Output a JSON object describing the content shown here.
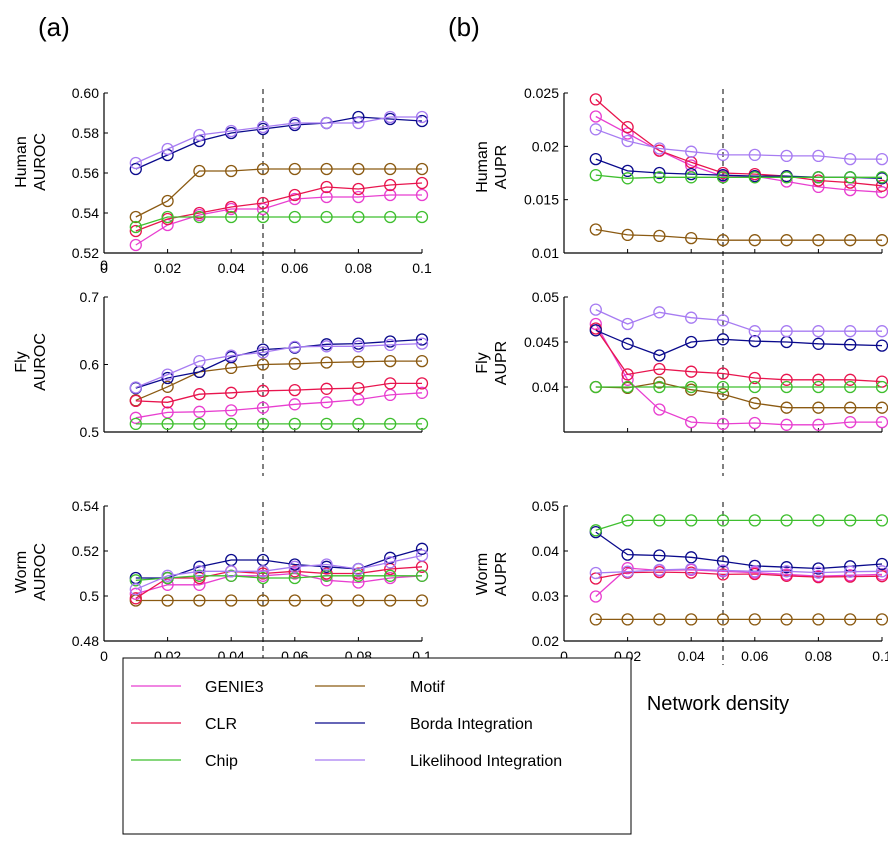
{
  "panels": {
    "a": "(a)",
    "b": "(b)"
  },
  "legend": [
    {
      "name": "GENIE3",
      "color": "#e83fd0"
    },
    {
      "name": "Motif",
      "color": "#8b5a12"
    },
    {
      "name": "CLR",
      "color": "#e8154e"
    },
    {
      "name": "Borda Integration",
      "color": "#0a0a8c"
    },
    {
      "name": "Chip",
      "color": "#3fbf2f"
    },
    {
      "name": "Likelihood Integration",
      "color": "#a77cf2"
    }
  ],
  "chart_data": [
    {
      "type": "line",
      "panel": "a",
      "ylabel": [
        "Human",
        "AUROC"
      ],
      "xlabel": "",
      "xlim": [
        0,
        0.1
      ],
      "ylim": [
        0.52,
        0.6
      ],
      "xticks": [
        "0",
        "0.02",
        "0.04",
        "0.06",
        "0.08",
        "0.1"
      ],
      "yticks": [
        "0.52",
        "0.54",
        "0.56",
        "0.58",
        "0.60"
      ],
      "extra_ticks": [
        "0"
      ],
      "x": [
        0.01,
        0.02,
        0.03,
        0.04,
        0.05,
        0.06,
        0.07,
        0.08,
        0.09,
        0.1
      ],
      "vline": 0.05,
      "series": [
        {
          "name": "GENIE3",
          "values": [
            0.524,
            0.534,
            0.539,
            0.542,
            0.542,
            0.547,
            0.548,
            0.548,
            0.549,
            0.549
          ]
        },
        {
          "name": "Motif",
          "values": [
            0.538,
            0.546,
            0.561,
            0.561,
            0.562,
            0.562,
            0.562,
            0.562,
            0.562,
            0.562
          ]
        },
        {
          "name": "CLR",
          "values": [
            0.531,
            0.537,
            0.54,
            0.543,
            0.545,
            0.549,
            0.553,
            0.552,
            0.554,
            0.555
          ]
        },
        {
          "name": "Borda Integration",
          "values": [
            0.562,
            0.569,
            0.576,
            0.58,
            0.582,
            0.584,
            0.585,
            0.588,
            0.587,
            0.586
          ]
        },
        {
          "name": "Chip",
          "values": [
            0.533,
            0.538,
            0.538,
            0.538,
            0.538,
            0.538,
            0.538,
            0.538,
            0.538,
            0.538
          ]
        },
        {
          "name": "Likelihood Integration",
          "values": [
            0.565,
            0.572,
            0.579,
            0.581,
            0.583,
            0.585,
            0.585,
            0.585,
            0.588,
            0.588
          ]
        }
      ]
    },
    {
      "type": "line",
      "panel": "a",
      "ylabel": [
        "Fly",
        "AUROC"
      ],
      "xlabel": "",
      "xlim": [
        0,
        0.1
      ],
      "ylim": [
        0.5,
        0.7
      ],
      "xticks": [],
      "yticks": [
        "0.5",
        "0.6",
        "0.7"
      ],
      "x": [
        0.01,
        0.02,
        0.03,
        0.04,
        0.05,
        0.06,
        0.07,
        0.08,
        0.09,
        0.1
      ],
      "vline": 0.05,
      "series": [
        {
          "name": "GENIE3",
          "values": [
            0.521,
            0.529,
            0.53,
            0.532,
            0.536,
            0.541,
            0.544,
            0.548,
            0.555,
            0.558
          ]
        },
        {
          "name": "Motif",
          "values": [
            0.547,
            0.567,
            0.589,
            0.595,
            0.6,
            0.601,
            0.603,
            0.604,
            0.605,
            0.605
          ]
        },
        {
          "name": "CLR",
          "values": [
            0.546,
            0.544,
            0.556,
            0.558,
            0.561,
            0.562,
            0.564,
            0.565,
            0.572,
            0.572
          ]
        },
        {
          "name": "Borda Integration",
          "values": [
            0.565,
            0.58,
            0.589,
            0.611,
            0.622,
            0.625,
            0.63,
            0.631,
            0.634,
            0.637
          ]
        },
        {
          "name": "Chip",
          "values": [
            0.512,
            0.512,
            0.512,
            0.512,
            0.512,
            0.512,
            0.512,
            0.512,
            0.512,
            0.512
          ]
        },
        {
          "name": "Likelihood Integration",
          "values": [
            0.566,
            0.585,
            0.605,
            0.613,
            0.618,
            0.626,
            0.627,
            0.627,
            0.629,
            0.631
          ]
        }
      ]
    },
    {
      "type": "line",
      "panel": "a",
      "ylabel": [
        "Worm",
        "AUROC"
      ],
      "xlabel": "Network density",
      "xlim": [
        0,
        0.1
      ],
      "ylim": [
        0.48,
        0.54
      ],
      "xticks": [
        "0",
        "0.02",
        "0.04",
        "0.06",
        "0.08",
        "0.1"
      ],
      "yticks": [
        "0.48",
        "0.5",
        "0.52",
        "0.54"
      ],
      "x": [
        0.01,
        0.02,
        0.03,
        0.04,
        0.05,
        0.06,
        0.07,
        0.08,
        0.09,
        0.1
      ],
      "vline": 0.05,
      "series": [
        {
          "name": "GENIE3",
          "values": [
            0.501,
            0.505,
            0.505,
            0.509,
            0.509,
            0.51,
            0.507,
            0.506,
            0.508,
            0.509
          ]
        },
        {
          "name": "Motif",
          "values": [
            0.498,
            0.498,
            0.498,
            0.498,
            0.498,
            0.498,
            0.498,
            0.498,
            0.498,
            0.498
          ]
        },
        {
          "name": "CLR",
          "values": [
            0.499,
            0.508,
            0.508,
            0.511,
            0.51,
            0.511,
            0.51,
            0.51,
            0.512,
            0.513
          ]
        },
        {
          "name": "Borda Integration",
          "values": [
            0.508,
            0.508,
            0.513,
            0.516,
            0.516,
            0.514,
            0.513,
            0.512,
            0.517,
            0.521
          ]
        },
        {
          "name": "Chip",
          "values": [
            0.507,
            0.508,
            0.509,
            0.509,
            0.508,
            0.508,
            0.509,
            0.509,
            0.509,
            0.509
          ]
        },
        {
          "name": "Likelihood Integration",
          "values": [
            0.503,
            0.509,
            0.511,
            0.511,
            0.511,
            0.513,
            0.514,
            0.512,
            0.515,
            0.518
          ]
        }
      ]
    },
    {
      "type": "line",
      "panel": "b",
      "ylabel": [
        "Human",
        "AUPR"
      ],
      "xlabel": "",
      "xlim": [
        0,
        0.1
      ],
      "ylim": [
        0.01,
        0.025
      ],
      "xticks": [],
      "yticks": [
        "0.01",
        "0.015",
        "0.02",
        "0.025"
      ],
      "x": [
        0.01,
        0.02,
        0.03,
        0.04,
        0.05,
        0.06,
        0.07,
        0.08,
        0.09,
        0.1
      ],
      "vline": 0.05,
      "series": [
        {
          "name": "GENIE3",
          "values": [
            0.0228,
            0.0212,
            0.0196,
            0.0182,
            0.0172,
            0.0172,
            0.0167,
            0.0162,
            0.0159,
            0.0157
          ]
        },
        {
          "name": "Motif",
          "values": [
            0.0122,
            0.0117,
            0.0116,
            0.0114,
            0.0112,
            0.0112,
            0.0112,
            0.0112,
            0.0112,
            0.0112
          ]
        },
        {
          "name": "CLR",
          "values": [
            0.0244,
            0.0218,
            0.0196,
            0.0185,
            0.0175,
            0.0174,
            0.0172,
            0.0168,
            0.0166,
            0.0163
          ]
        },
        {
          "name": "Borda Integration",
          "values": [
            0.0188,
            0.0177,
            0.0175,
            0.0174,
            0.0173,
            0.0172,
            0.0172,
            0.0171,
            0.0171,
            0.017
          ]
        },
        {
          "name": "Chip",
          "values": [
            0.0173,
            0.017,
            0.0171,
            0.0171,
            0.0171,
            0.0171,
            0.0171,
            0.0171,
            0.0171,
            0.0171
          ]
        },
        {
          "name": "Likelihood Integration",
          "values": [
            0.0216,
            0.0205,
            0.0198,
            0.0195,
            0.0192,
            0.0192,
            0.0191,
            0.0191,
            0.0188,
            0.0188
          ]
        }
      ]
    },
    {
      "type": "line",
      "panel": "b",
      "ylabel": [
        "Fly",
        "AUPR"
      ],
      "xlabel": "",
      "xlim": [
        0,
        0.1
      ],
      "ylim": [
        0.035,
        0.05
      ],
      "xticks": [],
      "yticks": [
        "0.04",
        "0.045",
        "0.05"
      ],
      "x": [
        0.01,
        0.02,
        0.03,
        0.04,
        0.05,
        0.06,
        0.07,
        0.08,
        0.09,
        0.1
      ],
      "vline": 0.05,
      "series": [
        {
          "name": "GENIE3",
          "values": [
            0.047,
            0.0408,
            0.0375,
            0.0361,
            0.0359,
            0.036,
            0.0358,
            0.0358,
            0.0361,
            0.0361
          ]
        },
        {
          "name": "Motif",
          "values": [
            0.04,
            0.0399,
            0.0405,
            0.0397,
            0.0392,
            0.0382,
            0.0377,
            0.0377,
            0.0377,
            0.0377
          ]
        },
        {
          "name": "CLR",
          "values": [
            0.0465,
            0.0414,
            0.042,
            0.0417,
            0.0415,
            0.041,
            0.0408,
            0.0408,
            0.0408,
            0.0406
          ]
        },
        {
          "name": "Borda Integration",
          "values": [
            0.0463,
            0.0448,
            0.0435,
            0.045,
            0.0453,
            0.0451,
            0.045,
            0.0448,
            0.0447,
            0.0446
          ]
        },
        {
          "name": "Chip",
          "values": [
            0.04,
            0.04,
            0.04,
            0.04,
            0.04,
            0.04,
            0.04,
            0.04,
            0.04,
            0.04
          ]
        },
        {
          "name": "Likelihood Integration",
          "values": [
            0.0486,
            0.047,
            0.0483,
            0.0477,
            0.0474,
            0.0462,
            0.0462,
            0.0462,
            0.0462,
            0.0462
          ]
        }
      ]
    },
    {
      "type": "line",
      "panel": "b",
      "ylabel": [
        "Worm",
        "AUPR"
      ],
      "xlabel": "Network density",
      "xlim": [
        0,
        0.1
      ],
      "ylim": [
        0.02,
        0.05
      ],
      "xticks": [
        "0",
        "0.02",
        "0.04",
        "0.06",
        "0.08",
        "0.1"
      ],
      "yticks": [
        "0.02",
        "0.03",
        "0.04",
        "0.05"
      ],
      "x": [
        0.01,
        0.02,
        0.03,
        0.04,
        0.05,
        0.06,
        0.07,
        0.08,
        0.09,
        0.1
      ],
      "vline": 0.05,
      "series": [
        {
          "name": "GENIE3",
          "values": [
            0.0299,
            0.0362,
            0.0357,
            0.0358,
            0.0355,
            0.0352,
            0.0348,
            0.0344,
            0.0346,
            0.0348
          ]
        },
        {
          "name": "Motif",
          "values": [
            0.0248,
            0.0248,
            0.0248,
            0.0248,
            0.0248,
            0.0248,
            0.0248,
            0.0248,
            0.0248,
            0.0248
          ]
        },
        {
          "name": "CLR",
          "values": [
            0.0339,
            0.0352,
            0.0353,
            0.0352,
            0.0348,
            0.0349,
            0.0345,
            0.0342,
            0.0343,
            0.0344
          ]
        },
        {
          "name": "Borda Integration",
          "values": [
            0.0442,
            0.0392,
            0.039,
            0.0386,
            0.0377,
            0.0367,
            0.0364,
            0.0361,
            0.0366,
            0.0371
          ]
        },
        {
          "name": "Chip",
          "values": [
            0.0446,
            0.0468,
            0.0468,
            0.0468,
            0.0468,
            0.0468,
            0.0468,
            0.0468,
            0.0468,
            0.0468
          ]
        },
        {
          "name": "Likelihood Integration",
          "values": [
            0.0351,
            0.0354,
            0.0358,
            0.036,
            0.0357,
            0.0355,
            0.0355,
            0.0352,
            0.0354,
            0.0355
          ]
        }
      ]
    }
  ]
}
